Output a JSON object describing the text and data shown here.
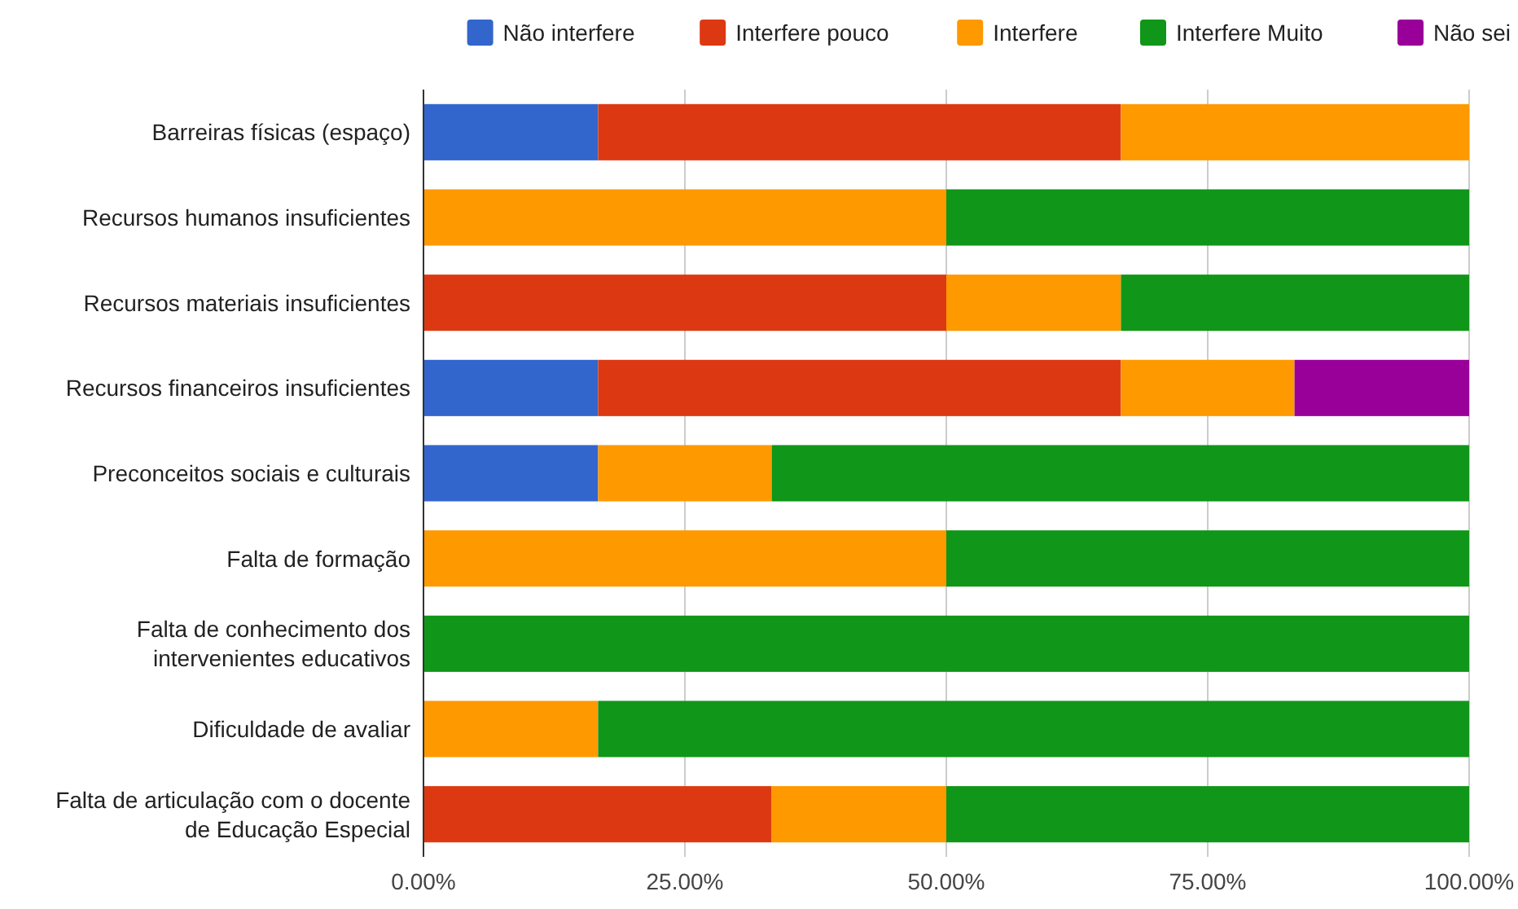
{
  "chart_data": {
    "type": "bar",
    "orientation": "horizontal",
    "stacked": true,
    "legend": "top",
    "grid": "x",
    "categories": [
      "Barreiras físicas (espaço)",
      "Recursos humanos insuficientes",
      "Recursos materiais insuficientes",
      "Recursos financeiros insuficientes",
      "Preconceitos sociais e culturais",
      "Falta de formação",
      "Falta de conhecimento dos intervenientes educativos",
      "Dificuldade de avaliar",
      "Falta de articulação com o docente de Educação Especial"
    ],
    "series": [
      {
        "name": "Não interfere",
        "color": "#3366cc",
        "values": [
          16.7,
          0,
          0,
          16.7,
          16.7,
          0,
          0,
          0,
          0
        ]
      },
      {
        "name": "Interfere pouco",
        "color": "#dc3912",
        "values": [
          50,
          0,
          50,
          50,
          0,
          0,
          0,
          0,
          33.3
        ]
      },
      {
        "name": "Interfere",
        "color": "#ff9900",
        "values": [
          33.3,
          50,
          16.7,
          16.6,
          16.6,
          50,
          0,
          16.7,
          16.7
        ]
      },
      {
        "name": "Interfere Muito",
        "color": "#109618",
        "values": [
          0,
          50,
          33.3,
          0,
          66.7,
          50,
          100,
          83.3,
          50
        ]
      },
      {
        "name": "Não sei",
        "color": "#990099",
        "values": [
          0,
          0,
          0,
          16.7,
          0,
          0,
          0,
          0,
          0
        ]
      }
    ],
    "xlim": [
      0,
      100
    ],
    "xticks": [
      {
        "value": 0,
        "label": "0.00%"
      },
      {
        "value": 25,
        "label": "25.00%"
      },
      {
        "value": 50,
        "label": "50.00%"
      },
      {
        "value": 75,
        "label": "75.00%"
      },
      {
        "value": 100,
        "label": "100.00%"
      }
    ]
  }
}
